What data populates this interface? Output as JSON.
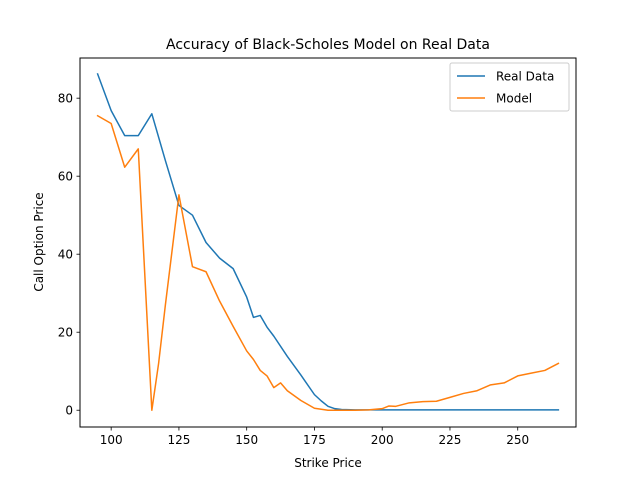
{
  "chart_data": {
    "type": "line",
    "title": "Accuracy of Black-Scholes Model on Real Data",
    "xlabel": "Strike Price",
    "ylabel": "Call Option Price",
    "xlim": [
      88.5,
      271.5
    ],
    "ylim": [
      -4.3,
      90.3
    ],
    "xticks": [
      100,
      125,
      150,
      175,
      200,
      225,
      250
    ],
    "yticks": [
      0,
      20,
      40,
      60,
      80
    ],
    "grid": false,
    "legend": "top-right",
    "series": [
      {
        "name": "Real Data",
        "color": "#1f77b4",
        "x": [
          95,
          100,
          105,
          110,
          115,
          120,
          125,
          130,
          135,
          140,
          145,
          150,
          152.5,
          155,
          157.5,
          160,
          165,
          170,
          175,
          177.5,
          180,
          182.5,
          185,
          190,
          195,
          200,
          205,
          210,
          215,
          220,
          230,
          240,
          250,
          260,
          265
        ],
        "values": [
          86.2,
          76.8,
          70.4,
          70.4,
          76.0,
          64.0,
          52.5,
          50.0,
          43.0,
          39.0,
          36.3,
          29.0,
          23.8,
          24.3,
          21.3,
          19.0,
          13.8,
          9.0,
          4.0,
          2.4,
          1.0,
          0.4,
          0.2,
          0.1,
          0.1,
          0.1,
          0.1,
          0.1,
          0.1,
          0.1,
          0.1,
          0.1,
          0.1,
          0.1,
          0.1
        ]
      },
      {
        "name": "Model",
        "color": "#ff7f0e",
        "x": [
          95,
          100,
          105,
          110,
          115,
          117.5,
          120,
          125,
          130,
          135,
          140,
          145,
          150,
          152.5,
          155,
          157.5,
          160,
          162.5,
          165,
          170,
          175,
          180,
          185,
          190,
          195,
          200,
          202.5,
          205,
          210,
          215,
          220,
          225,
          230,
          235,
          240,
          245,
          250,
          255,
          260,
          265
        ],
        "values": [
          75.5,
          73.5,
          62.3,
          67.0,
          0.0,
          12.0,
          27.0,
          55.2,
          36.8,
          35.5,
          28.0,
          21.5,
          15.2,
          13.0,
          10.2,
          8.8,
          5.8,
          7.0,
          5.0,
          2.5,
          0.5,
          0.0,
          0.0,
          0.0,
          0.1,
          0.4,
          1.1,
          1.0,
          1.9,
          2.2,
          2.3,
          3.3,
          4.3,
          5.0,
          6.5,
          7.0,
          8.8,
          9.5,
          10.2,
          12.0
        ]
      }
    ]
  }
}
